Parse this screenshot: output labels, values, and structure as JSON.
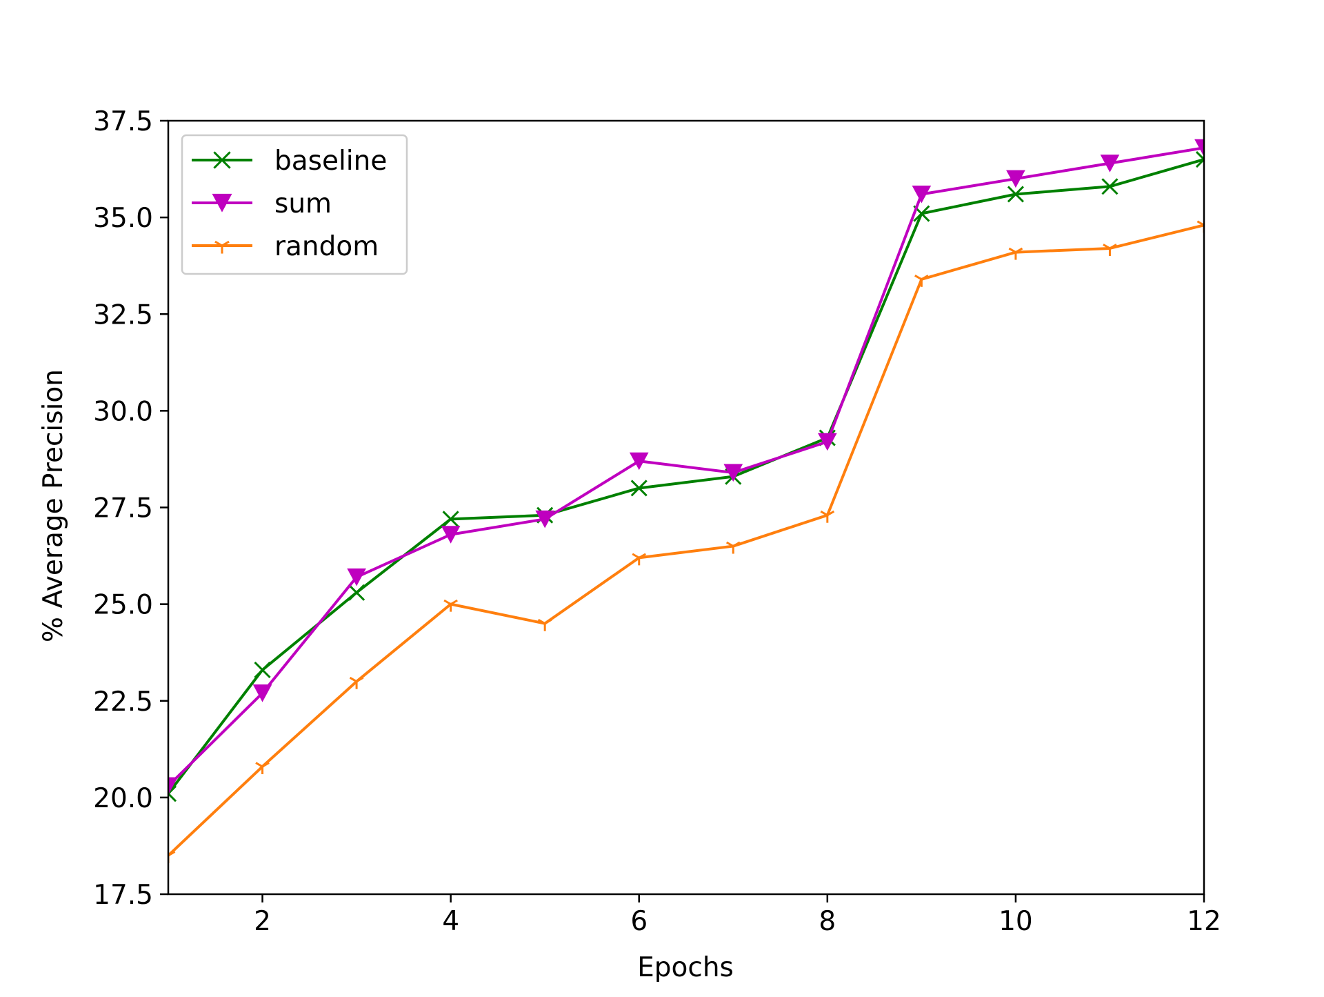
{
  "chart_data": {
    "type": "line",
    "title": "",
    "xlabel": "Epochs",
    "ylabel": "% Average Precision",
    "xlim": [
      1,
      12
    ],
    "ylim": [
      17.5,
      37.5
    ],
    "xticks": [
      2,
      4,
      6,
      8,
      10,
      12
    ],
    "yticks": [
      17.5,
      20.0,
      22.5,
      25.0,
      27.5,
      30.0,
      32.5,
      35.0,
      37.5
    ],
    "xtick_labels": [
      "2",
      "4",
      "6",
      "8",
      "10",
      "12"
    ],
    "ytick_labels": [
      "17.5",
      "20.0",
      "22.5",
      "25.0",
      "27.5",
      "30.0",
      "32.5",
      "35.0",
      "37.5"
    ],
    "grid": false,
    "legend_position": "upper left",
    "x": [
      1,
      2,
      3,
      4,
      5,
      6,
      7,
      8,
      9,
      10,
      11,
      12
    ],
    "series": [
      {
        "name": "baseline",
        "color": "#008000",
        "marker": "x",
        "values": [
          20.1,
          23.3,
          25.3,
          27.2,
          27.3,
          28.0,
          28.3,
          29.3,
          35.1,
          35.6,
          35.8,
          36.5
        ]
      },
      {
        "name": "sum",
        "color": "#bf00bf",
        "marker": "triangle-down",
        "values": [
          20.3,
          22.7,
          25.7,
          26.8,
          27.2,
          28.7,
          28.4,
          29.2,
          35.6,
          36.0,
          36.4,
          36.8
        ]
      },
      {
        "name": "random",
        "color": "#ff7f0e",
        "marker": "tri-down",
        "values": [
          18.5,
          20.8,
          23.0,
          25.0,
          24.5,
          26.2,
          26.5,
          27.3,
          33.4,
          34.1,
          34.2,
          34.8
        ]
      }
    ]
  }
}
